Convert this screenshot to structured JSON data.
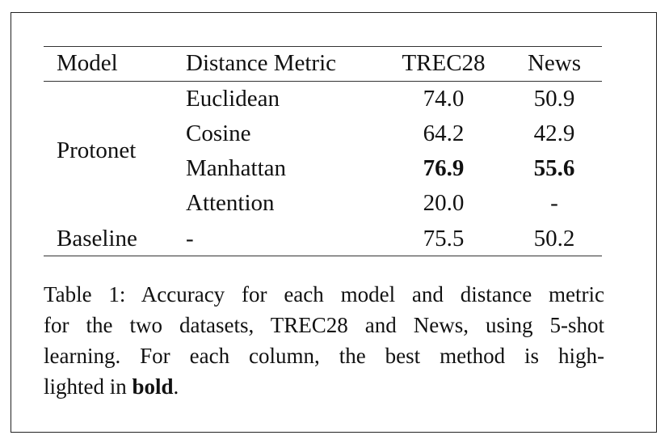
{
  "table": {
    "headers": {
      "model": "Model",
      "metric": "Distance Metric",
      "trec": "TREC28",
      "news": "News"
    },
    "rows": [
      {
        "metric": "Euclidean",
        "trec": "74.0",
        "news": "50.9"
      },
      {
        "metric": "Cosine",
        "trec": "64.2",
        "news": "42.9"
      },
      {
        "metric": "Manhattan",
        "trec": "76.9",
        "news": "55.6"
      },
      {
        "metric": "Attention",
        "trec": "20.0",
        "news": "-"
      }
    ],
    "group_label": "Protonet",
    "baseline": {
      "model": "Baseline",
      "metric": "-",
      "trec": "75.5",
      "news": "50.2"
    }
  },
  "caption": {
    "line1": "Table 1: Accuracy for each model and distance metric",
    "line2": "for the two datasets, TREC28 and News, using 5-shot",
    "line3": "learning.  For each column, the best method is high-",
    "line4_prefix": "lighted in ",
    "line4_bold": "bold",
    "line4_suffix": "."
  }
}
